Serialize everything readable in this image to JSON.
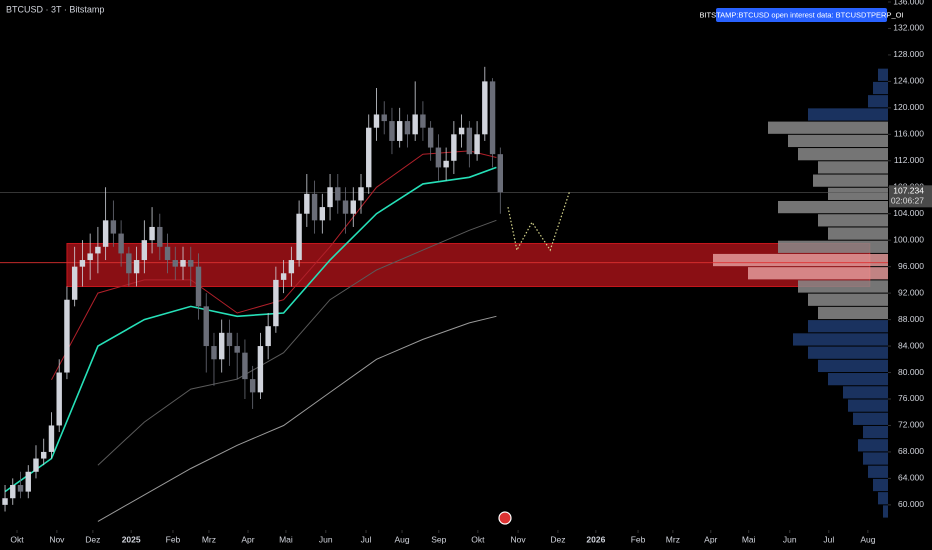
{
  "chart_data": {
    "type": "candlestick",
    "title": "BTCUSD · 3T · Bitstamp",
    "badge": "BITSTAMP:BTCUSD open interest data: BTCUSDTPERP_OI",
    "last_price": {
      "value": 107234,
      "label": "107.234"
    },
    "countdown": "02:06:27",
    "xlim": [
      -1.3,
      228.2
    ],
    "ylim": [
      56200,
      136300
    ],
    "yticks": [
      {
        "value": 60000,
        "label": "60.000"
      },
      {
        "value": 64000,
        "label": "64.000"
      },
      {
        "value": 68000,
        "label": "68.000"
      },
      {
        "value": 72000,
        "label": "72.000"
      },
      {
        "value": 76000,
        "label": "76.000"
      },
      {
        "value": 80000,
        "label": "80.000"
      },
      {
        "value": 84000,
        "label": "84.000"
      },
      {
        "value": 88000,
        "label": "88.000"
      },
      {
        "value": 92000,
        "label": "92.000"
      },
      {
        "value": 96000,
        "label": "96.000"
      },
      {
        "value": 100000,
        "label": "100.000"
      },
      {
        "value": 104000,
        "label": "104.000"
      },
      {
        "value": 108000,
        "label": "108.000"
      },
      {
        "value": 112000,
        "label": "112.000"
      },
      {
        "value": 116000,
        "label": "116.000"
      },
      {
        "value": 120000,
        "label": "120.000"
      },
      {
        "value": 124000,
        "label": "124.000"
      },
      {
        "value": 128000,
        "label": "128.000"
      },
      {
        "value": 132000,
        "label": "132.000"
      },
      {
        "value": 136000,
        "label": "136.000"
      }
    ],
    "xticks": [
      {
        "value": 3.1,
        "label": "Okt"
      },
      {
        "value": 13.4,
        "label": "Nov"
      },
      {
        "value": 22.7,
        "label": "Dez"
      },
      {
        "value": 32.6,
        "label": "2025"
      },
      {
        "value": 43.4,
        "label": "Feb"
      },
      {
        "value": 52.7,
        "label": "Mrz"
      },
      {
        "value": 62.8,
        "label": "Apr"
      },
      {
        "value": 72.6,
        "label": "Mai"
      },
      {
        "value": 82.9,
        "label": "Jun"
      },
      {
        "value": 93.3,
        "label": "Jul"
      },
      {
        "value": 102.6,
        "label": "Aug"
      },
      {
        "value": 112.1,
        "label": "Sep"
      },
      {
        "value": 122.2,
        "label": "Okt"
      },
      {
        "value": 132.6,
        "label": "Nov"
      },
      {
        "value": 142.9,
        "label": "Dez"
      },
      {
        "value": 152.7,
        "label": "2026"
      },
      {
        "value": 163.6,
        "label": "Feb"
      },
      {
        "value": 172.6,
        "label": "Mrz"
      },
      {
        "value": 182.4,
        "label": "Apr"
      },
      {
        "value": 192.2,
        "label": "Mai"
      },
      {
        "value": 202.8,
        "label": "Jun"
      },
      {
        "value": 212.9,
        "label": "Jul"
      },
      {
        "value": 223,
        "label": "Aug"
      }
    ],
    "up_color": "#d1d4dc",
    "down_color": "#6a6d78",
    "candles": {
      "x": [
        0,
        2,
        4,
        6,
        8,
        10,
        12,
        14,
        16,
        18,
        20,
        22,
        24,
        26,
        28,
        30,
        32,
        34,
        36,
        38,
        40,
        42,
        44,
        46,
        48,
        50,
        52,
        54,
        56,
        58,
        60,
        62,
        64,
        66,
        68,
        70,
        72,
        74,
        76,
        78,
        80,
        82,
        84,
        86,
        88,
        90,
        92,
        94,
        96,
        98,
        100,
        102,
        104,
        106,
        108,
        110,
        112,
        114,
        116,
        118,
        120,
        122,
        124,
        126,
        128
      ],
      "open": [
        60000,
        61000,
        63000,
        62000,
        65000,
        67000,
        68000,
        72000,
        80000,
        91000,
        96000,
        97000,
        98000,
        99000,
        103000,
        101000,
        98000,
        95000,
        97000,
        100000,
        102000,
        99000,
        97000,
        96000,
        97000,
        96000,
        90000,
        84000,
        82000,
        86000,
        84000,
        83000,
        79000,
        77000,
        84000,
        87000,
        94000,
        95000,
        97000,
        104000,
        107000,
        103000,
        105000,
        108000,
        106000,
        104000,
        106000,
        108000,
        117000,
        119000,
        118000,
        115000,
        118000,
        116000,
        119000,
        117000,
        114000,
        111000,
        112000,
        116000,
        117000,
        113000,
        116000,
        124000,
        113000
      ],
      "high": [
        63000,
        64000,
        65000,
        66000,
        69000,
        70000,
        74000,
        82000,
        93000,
        99000,
        100000,
        101000,
        102000,
        108000,
        106000,
        103000,
        99000,
        99000,
        103000,
        105000,
        104000,
        101000,
        99000,
        99000,
        99000,
        98000,
        92000,
        86000,
        88000,
        88000,
        86000,
        85000,
        81000,
        86000,
        89000,
        96000,
        97000,
        99000,
        106000,
        110000,
        109000,
        107000,
        110000,
        110000,
        108000,
        108000,
        110000,
        119000,
        123000,
        121000,
        120000,
        120000,
        119000,
        124000,
        121000,
        118000,
        116000,
        114000,
        118000,
        119000,
        118000,
        118000,
        126200,
        124500,
        114000
      ],
      "low": [
        59000,
        60000,
        61000,
        61000,
        64000,
        66000,
        67000,
        71000,
        79000,
        90000,
        93000,
        94000,
        95000,
        97000,
        99000,
        96000,
        93000,
        93000,
        95000,
        98000,
        97000,
        95000,
        94000,
        94000,
        93000,
        88000,
        80000,
        78000,
        80000,
        81000,
        79000,
        76000,
        74500,
        76000,
        82000,
        86000,
        92000,
        93000,
        96000,
        102000,
        101000,
        101000,
        103000,
        104000,
        101000,
        102000,
        104000,
        107000,
        115000,
        116000,
        113000,
        114000,
        114000,
        115000,
        115000,
        112000,
        109000,
        109000,
        110000,
        114000,
        111000,
        112000,
        115000,
        111000,
        104000
      ],
      "close": [
        61000,
        63000,
        62000,
        65000,
        67000,
        68000,
        72000,
        80000,
        91000,
        96000,
        97000,
        98000,
        99000,
        103000,
        101000,
        98000,
        95000,
        97000,
        100000,
        102000,
        99000,
        97000,
        96000,
        97000,
        96000,
        90000,
        84000,
        82000,
        86000,
        84000,
        83000,
        79000,
        77000,
        84000,
        87000,
        94000,
        95000,
        97000,
        104000,
        107000,
        103000,
        105000,
        108000,
        106000,
        104000,
        106000,
        108000,
        117000,
        119000,
        118000,
        115000,
        118000,
        116000,
        119000,
        117000,
        114000,
        111000,
        112000,
        116000,
        117000,
        113000,
        116000,
        124000,
        113000,
        107234
      ]
    },
    "lines": [
      {
        "color": "#26e0b8",
        "width": 1.6,
        "x": [
          0,
          12,
          24,
          36,
          48,
          60,
          72,
          84,
          96,
          108,
          120,
          127
        ],
        "values": [
          62000,
          67000,
          84000,
          88000,
          90000,
          88500,
          89000,
          97000,
          104000,
          108500,
          109500,
          111000
        ]
      },
      {
        "color": "#b0202a",
        "width": 1,
        "x": [
          0,
          12,
          24,
          36,
          48,
          60,
          72,
          84,
          96,
          108,
          120,
          127
        ],
        "values": [
          null,
          78900,
          92000,
          94000,
          94000,
          89000,
          91000,
          99000,
          108000,
          113000,
          113500,
          112500
        ]
      },
      {
        "color": "#5a5a5a",
        "width": 1,
        "x": [
          0,
          12,
          24,
          36,
          48,
          60,
          72,
          84,
          96,
          108,
          120,
          127
        ],
        "values": [
          null,
          null,
          66000,
          72500,
          77500,
          79000,
          83000,
          91000,
          95500,
          98500,
          101500,
          103000
        ]
      },
      {
        "color": "#9a9a9a",
        "width": 1,
        "x": [
          0,
          12,
          24,
          36,
          48,
          60,
          72,
          84,
          96,
          108,
          120,
          127
        ],
        "values": [
          null,
          null,
          57500,
          61500,
          65500,
          69000,
          72000,
          77000,
          82000,
          85000,
          87500,
          88500
        ]
      }
    ],
    "projection": {
      "color": "#d6d68c",
      "x": [
        130,
        132.3,
        136.2,
        140.9,
        146
      ],
      "values": [
        105000,
        98500,
        102700,
        98500,
        107500
      ]
    },
    "zone": {
      "x": [
        16,
        223.5
      ],
      "y": [
        93000,
        99500
      ],
      "color": "#c4161c"
    },
    "level": {
      "value": 96600,
      "color": "#e03030"
    },
    "volume_profile": {
      "bins": [
        58000,
        60000,
        62000,
        64000,
        66000,
        68000,
        70000,
        72000,
        74000,
        76000,
        78000,
        80000,
        82000,
        84000,
        86000,
        88000,
        90000,
        92000,
        94000,
        96000,
        98000,
        100000,
        102000,
        104000,
        106000,
        108000,
        110000,
        112000,
        114000,
        116000,
        118000,
        120000,
        122000,
        124000,
        126000
      ],
      "counts": [
        5,
        10,
        15,
        20,
        25,
        30,
        25,
        35,
        40,
        45,
        60,
        70,
        80,
        95,
        80,
        70,
        80,
        90,
        140,
        175,
        110,
        60,
        70,
        110,
        60,
        75,
        70,
        90,
        100,
        120,
        80,
        20,
        15,
        10
      ],
      "colors": [
        "#1f3b70",
        "#1f3b70",
        "#1f3b70",
        "#1f3b70",
        "#1f3b70",
        "#1f3b70",
        "#1f3b70",
        "#1f3b70",
        "#1f3b70",
        "#1f3b70",
        "#1f3b70",
        "#1f3b70",
        "#1f3b70",
        "#1f3b70",
        "#1f3b70",
        "#8a8a8a",
        "#8a8a8a",
        "#8a8a8a",
        "#e39a9a",
        "#e39a9a",
        "#8a8a8a",
        "#8a8a8a",
        "#8a8a8a",
        "#8a8a8a",
        "#8a8a8a",
        "#8a8a8a",
        "#8a8a8a",
        "#8a8a8a",
        "#8a8a8a",
        "#8a8a8a",
        "#1f3b70",
        "#1f3b70",
        "#1f3b70",
        "#1f3b70"
      ]
    }
  }
}
